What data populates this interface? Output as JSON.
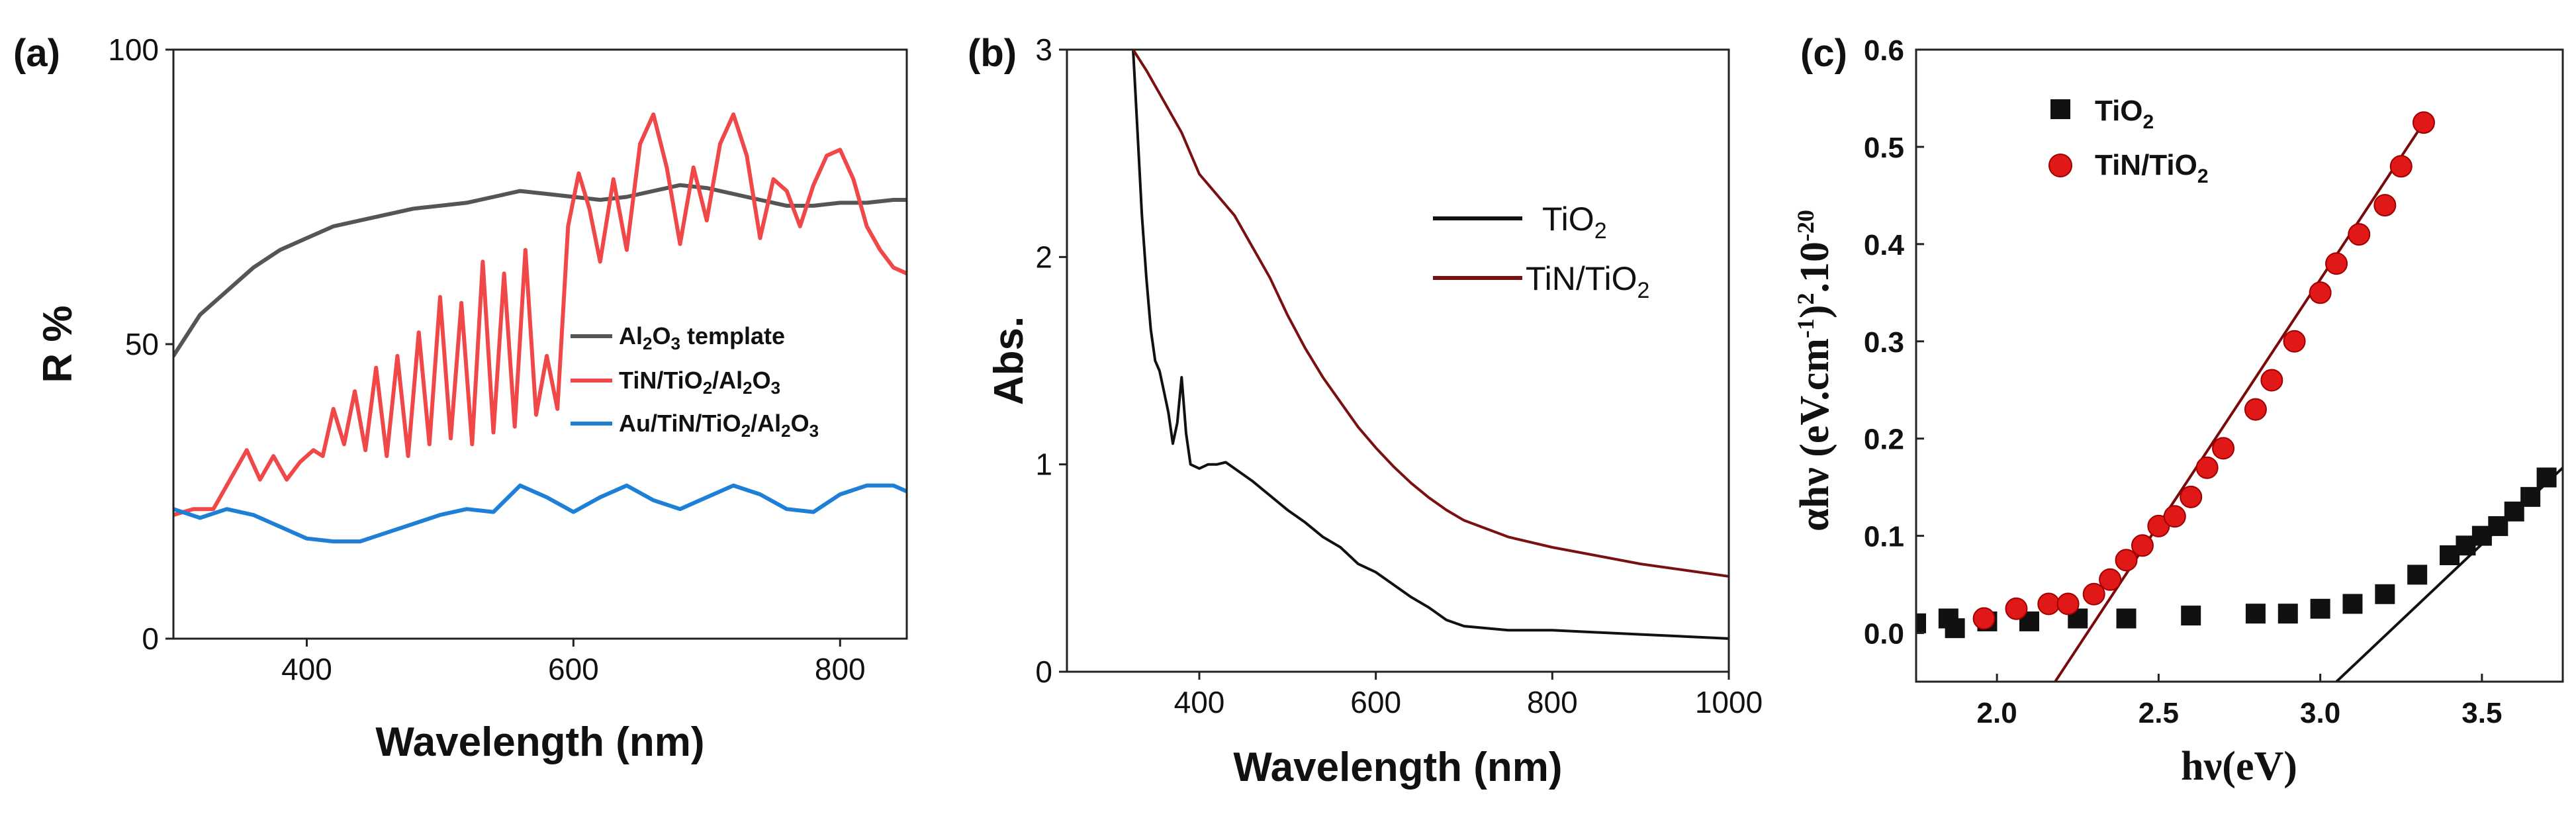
{
  "chart_data": [
    {
      "panel": "(a)",
      "type": "line",
      "xlabel": "Wavelength (nm)",
      "ylabel": "R %",
      "xlim": [
        300,
        850
      ],
      "ylim": [
        0,
        100
      ],
      "xticks": [
        400,
        600,
        800
      ],
      "yticks": [
        0,
        50,
        100
      ],
      "legend_position": "center-right",
      "colors": [
        "#555555",
        "#f04848",
        "#1e7fd6"
      ],
      "legend": [
        {
          "pre": "Al",
          "s1": "2",
          "mid1": "O",
          "s2": "3",
          "tail": " template"
        },
        {
          "pre": "TiN/TiO",
          "s1": "2",
          "mid1": "/Al",
          "s2": "2",
          "mid2": "O",
          "s3": "3",
          "tail": ""
        },
        {
          "pre": "Au/TiN/TiO",
          "s1": "2",
          "mid1": "/Al",
          "s2": "2",
          "mid2": "O",
          "s3": "3",
          "tail": ""
        }
      ],
      "series": [
        {
          "name": "Al2O3 template",
          "x": [
            300,
            320,
            340,
            360,
            380,
            400,
            420,
            440,
            460,
            480,
            500,
            520,
            540,
            560,
            580,
            600,
            620,
            640,
            660,
            680,
            700,
            720,
            740,
            760,
            780,
            800,
            820,
            840,
            850
          ],
          "y": [
            48,
            55,
            59,
            63,
            66,
            68,
            70,
            71,
            72,
            73,
            73.5,
            74,
            75,
            76,
            75.5,
            75,
            74.5,
            75,
            76,
            77,
            76.5,
            75.5,
            74.5,
            73.5,
            73.5,
            74,
            74,
            74.5,
            74.5
          ]
        },
        {
          "name": "TiN/TiO2/Al2O3",
          "x": [
            300,
            315,
            330,
            345,
            355,
            365,
            375,
            385,
            395,
            405,
            412,
            420,
            428,
            436,
            444,
            452,
            460,
            468,
            476,
            484,
            492,
            500,
            508,
            516,
            524,
            532,
            540,
            548,
            556,
            564,
            572,
            580,
            588,
            596,
            604,
            612,
            620,
            630,
            640,
            650,
            660,
            670,
            680,
            690,
            700,
            710,
            720,
            730,
            740,
            750,
            760,
            770,
            780,
            790,
            800,
            810,
            820,
            830,
            840,
            850
          ],
          "y": [
            21,
            22,
            22,
            28,
            32,
            27,
            31,
            27,
            30,
            32,
            31,
            39,
            33,
            42,
            32,
            46,
            31,
            48,
            31,
            52,
            33,
            58,
            34,
            57,
            33,
            64,
            35,
            62,
            36,
            66,
            38,
            48,
            39,
            70,
            79,
            73,
            64,
            78,
            66,
            84,
            89,
            80,
            67,
            80,
            71,
            84,
            89,
            82,
            68,
            78,
            76,
            70,
            77,
            82,
            83,
            78,
            70,
            66,
            63,
            62
          ]
        },
        {
          "name": "Au/TiN/TiO2/Al2O3",
          "x": [
            300,
            320,
            340,
            360,
            380,
            400,
            420,
            440,
            460,
            480,
            500,
            520,
            540,
            560,
            580,
            600,
            620,
            640,
            660,
            680,
            700,
            720,
            740,
            760,
            780,
            800,
            820,
            840,
            850
          ],
          "y": [
            22,
            20.5,
            22,
            21,
            19,
            17,
            16.5,
            16.5,
            18,
            19.5,
            21,
            22,
            21.5,
            26,
            24,
            21.5,
            24,
            26,
            23.5,
            22,
            24,
            26,
            24.5,
            22,
            21.5,
            24.5,
            26,
            26,
            25
          ]
        }
      ]
    },
    {
      "panel": "(b)",
      "type": "line",
      "xlabel": "Wavelength (nm)",
      "ylabel": "Abs.",
      "xlim": [
        250,
        1000
      ],
      "ylim": [
        0,
        3
      ],
      "xticks": [
        400,
        600,
        800,
        1000
      ],
      "yticks": [
        0,
        1,
        2,
        3
      ],
      "legend_position": "top-right",
      "colors": [
        "#111111",
        "#7a1010"
      ],
      "legend": [
        {
          "pre": "TiO",
          "s1": "2",
          "tail": ""
        },
        {
          "pre": "TiN/TiO",
          "s1": "2",
          "tail": ""
        }
      ],
      "series": [
        {
          "name": "TiO2",
          "x": [
            325,
            330,
            335,
            340,
            345,
            350,
            355,
            360,
            365,
            370,
            375,
            380,
            385,
            390,
            400,
            410,
            420,
            430,
            440,
            460,
            480,
            500,
            520,
            540,
            560,
            580,
            600,
            620,
            640,
            660,
            680,
            700,
            750,
            800,
            850,
            900,
            950,
            1000
          ],
          "y": [
            3.0,
            2.6,
            2.2,
            1.9,
            1.65,
            1.5,
            1.45,
            1.35,
            1.25,
            1.1,
            1.2,
            1.42,
            1.15,
            1.0,
            0.98,
            1.0,
            1.0,
            1.01,
            0.98,
            0.92,
            0.85,
            0.78,
            0.72,
            0.65,
            0.6,
            0.52,
            0.48,
            0.42,
            0.36,
            0.31,
            0.25,
            0.22,
            0.2,
            0.2,
            0.19,
            0.18,
            0.17,
            0.16
          ]
        },
        {
          "name": "TiN/TiO2",
          "x": [
            325,
            340,
            360,
            380,
            400,
            420,
            440,
            460,
            480,
            500,
            520,
            540,
            560,
            580,
            600,
            620,
            640,
            660,
            680,
            700,
            750,
            800,
            850,
            900,
            950,
            1000
          ],
          "y": [
            3.0,
            2.9,
            2.75,
            2.6,
            2.4,
            2.3,
            2.2,
            2.05,
            1.9,
            1.72,
            1.56,
            1.42,
            1.3,
            1.18,
            1.08,
            0.99,
            0.91,
            0.84,
            0.78,
            0.73,
            0.65,
            0.6,
            0.56,
            0.52,
            0.49,
            0.46
          ]
        }
      ]
    },
    {
      "panel": "(c)",
      "type": "scatter",
      "xlabel": "hν(eV)",
      "ylabel_parts": [
        "αhν (eV.cm",
        "-1",
        ")",
        "2",
        ".10",
        "-20"
      ],
      "xlim": [
        1.75,
        3.75
      ],
      "ylim": [
        -0.05,
        0.6
      ],
      "xticks": [
        2.0,
        2.5,
        3.0,
        3.5
      ],
      "xtick_labels": [
        "2.0",
        "2.5",
        "3.0",
        "3.5"
      ],
      "yticks": [
        0.0,
        0.1,
        0.2,
        0.3,
        0.4,
        0.5,
        0.6
      ],
      "ytick_labels": [
        "0.0",
        "0.1",
        "0.2",
        "0.3",
        "0.4",
        "0.5",
        "0.6"
      ],
      "legend_position": "top-left",
      "colors": [
        "#111111",
        "#e01818"
      ],
      "legend": [
        {
          "pre": "TiO",
          "s1": "2",
          "tail": ""
        },
        {
          "pre": "TiN/TiO",
          "s1": "2",
          "tail": ""
        }
      ],
      "series": [
        {
          "name": "TiO2",
          "marker": "square",
          "x": [
            1.75,
            1.85,
            1.87,
            1.97,
            2.1,
            2.25,
            2.4,
            2.6,
            2.8,
            2.9,
            3.0,
            3.1,
            3.2,
            3.3,
            3.4,
            3.45,
            3.5,
            3.55,
            3.6,
            3.65,
            3.7
          ],
          "y": [
            0.01,
            0.015,
            0.005,
            0.012,
            0.012,
            0.015,
            0.015,
            0.018,
            0.02,
            0.02,
            0.025,
            0.03,
            0.04,
            0.06,
            0.08,
            0.09,
            0.1,
            0.11,
            0.125,
            0.14,
            0.16
          ],
          "fit": [
            [
              3.05,
              -0.05
            ],
            [
              3.75,
              0.17
            ]
          ]
        },
        {
          "name": "TiN/TiO2",
          "marker": "circle",
          "x": [
            1.96,
            2.06,
            2.16,
            2.22,
            2.3,
            2.35,
            2.4,
            2.45,
            2.5,
            2.55,
            2.6,
            2.65,
            2.7,
            2.8,
            2.85,
            2.92,
            3.0,
            3.05,
            3.12,
            3.2,
            3.25,
            3.32
          ],
          "y": [
            0.015,
            0.025,
            0.03,
            0.03,
            0.04,
            0.055,
            0.075,
            0.09,
            0.11,
            0.12,
            0.14,
            0.17,
            0.19,
            0.23,
            0.26,
            0.3,
            0.35,
            0.38,
            0.41,
            0.44,
            0.48,
            0.525
          ],
          "fit": [
            [
              2.18,
              -0.05
            ],
            [
              3.32,
              0.525
            ]
          ]
        }
      ]
    }
  ]
}
